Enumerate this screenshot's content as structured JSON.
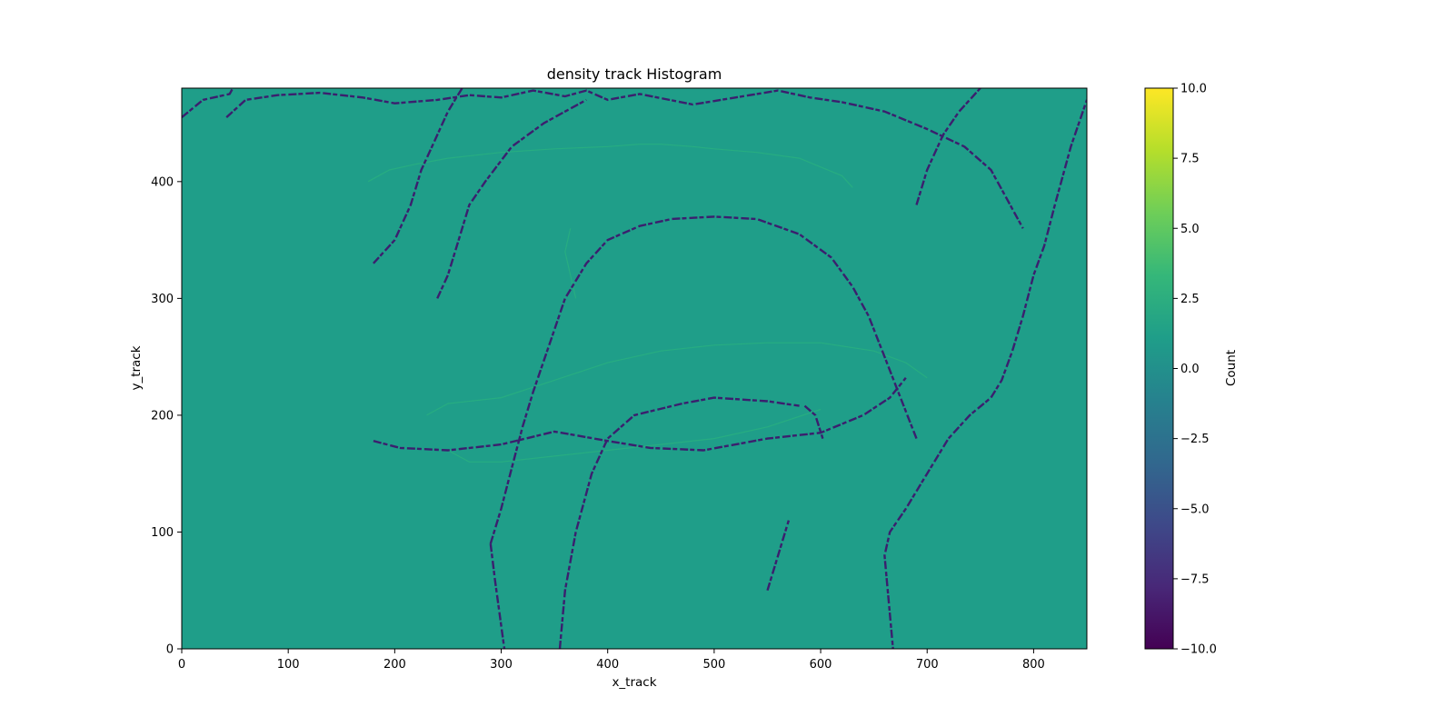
{
  "chart_data": {
    "type": "heatmap",
    "title": "density track Histogram",
    "xlabel": "x_track",
    "ylabel": "y_track",
    "xlim": [
      0,
      850
    ],
    "ylim": [
      0,
      480
    ],
    "x_ticks": [
      0,
      100,
      200,
      300,
      400,
      500,
      600,
      700,
      800
    ],
    "y_ticks": [
      0,
      100,
      200,
      300,
      400
    ],
    "grid": false,
    "background_value": 1,
    "background_color": "#1f9e89",
    "track_color": "#3b1f6e",
    "faint_track_color": "#27ad81",
    "colorbar": {
      "label": "Count",
      "range": [
        -10.0,
        10.0
      ],
      "ticks": [
        "10.0",
        "7.5",
        "5.0",
        "2.5",
        "0.0",
        "−2.5",
        "−5.0",
        "−7.5",
        "−10.0"
      ],
      "tick_values": [
        10,
        7.5,
        5,
        2.5,
        0,
        -2.5,
        -5,
        -7.5,
        -10
      ],
      "colormap": "viridis",
      "colormap_stops": [
        "#440154",
        "#482878",
        "#3e4989",
        "#31688e",
        "#26828e",
        "#1f9e89",
        "#35b779",
        "#6ece58",
        "#b5de2b",
        "#fde725"
      ]
    },
    "tracks": [
      {
        "value": -10,
        "points": [
          [
            42,
            455
          ],
          [
            60,
            470
          ],
          [
            90,
            474
          ],
          [
            130,
            476
          ],
          [
            170,
            472
          ],
          [
            200,
            467
          ],
          [
            240,
            470
          ],
          [
            270,
            474
          ],
          [
            300,
            472
          ],
          [
            330,
            478
          ],
          [
            360,
            473
          ],
          [
            380,
            478
          ],
          [
            400,
            470
          ],
          [
            430,
            475
          ],
          [
            480,
            466
          ],
          [
            520,
            472
          ],
          [
            560,
            478
          ],
          [
            590,
            472
          ],
          [
            620,
            468
          ],
          [
            660,
            460
          ],
          [
            700,
            445
          ],
          [
            735,
            430
          ],
          [
            760,
            410
          ],
          [
            775,
            385
          ],
          [
            790,
            360
          ]
        ]
      },
      {
        "value": -10,
        "points": [
          [
            180,
            178
          ],
          [
            205,
            172
          ],
          [
            250,
            170
          ],
          [
            300,
            175
          ],
          [
            350,
            186
          ],
          [
            400,
            178
          ],
          [
            440,
            172
          ],
          [
            490,
            170
          ],
          [
            550,
            180
          ],
          [
            600,
            185
          ],
          [
            640,
            200
          ],
          [
            665,
            215
          ],
          [
            680,
            232
          ]
        ]
      },
      {
        "value": -10,
        "points": [
          [
            290,
            90
          ],
          [
            300,
            120
          ],
          [
            310,
            155
          ],
          [
            320,
            190
          ],
          [
            330,
            220
          ],
          [
            345,
            260
          ],
          [
            360,
            300
          ],
          [
            380,
            330
          ],
          [
            400,
            350
          ],
          [
            430,
            362
          ],
          [
            460,
            368
          ],
          [
            500,
            370
          ],
          [
            540,
            368
          ],
          [
            580,
            355
          ],
          [
            610,
            335
          ],
          [
            630,
            310
          ],
          [
            645,
            285
          ],
          [
            660,
            250
          ],
          [
            675,
            215
          ],
          [
            690,
            180
          ]
        ]
      },
      {
        "value": -10,
        "points": [
          [
            290,
            90
          ],
          [
            292,
            75
          ],
          [
            294,
            60
          ],
          [
            297,
            40
          ],
          [
            300,
            20
          ],
          [
            303,
            0
          ]
        ]
      },
      {
        "value": -10,
        "points": [
          [
            355,
            0
          ],
          [
            360,
            50
          ],
          [
            370,
            100
          ],
          [
            385,
            150
          ],
          [
            400,
            180
          ],
          [
            425,
            200
          ],
          [
            470,
            210
          ],
          [
            500,
            215
          ],
          [
            550,
            212
          ],
          [
            580,
            208
          ]
        ]
      },
      {
        "value": -10,
        "points": [
          [
            585,
            208
          ],
          [
            595,
            200
          ],
          [
            602,
            180
          ]
        ]
      },
      {
        "value": -10,
        "points": [
          [
            550,
            50
          ],
          [
            560,
            80
          ],
          [
            570,
            110
          ]
        ]
      },
      {
        "value": -10,
        "points": [
          [
            670,
            -20
          ],
          [
            668,
            0
          ],
          [
            665,
            30
          ],
          [
            662,
            60
          ],
          [
            660,
            80
          ],
          [
            665,
            100
          ],
          [
            680,
            120
          ],
          [
            700,
            150
          ],
          [
            720,
            180
          ],
          [
            740,
            200
          ],
          [
            760,
            215
          ],
          [
            770,
            230
          ],
          [
            780,
            255
          ],
          [
            790,
            285
          ],
          [
            800,
            320
          ],
          [
            810,
            345
          ],
          [
            820,
            380
          ],
          [
            835,
            430
          ],
          [
            850,
            470
          ]
        ]
      },
      {
        "value": -10,
        "points": [
          [
            0,
            455
          ],
          [
            20,
            470
          ],
          [
            45,
            475
          ],
          [
            60,
            500
          ]
        ]
      },
      {
        "value": -10,
        "points": [
          [
            240,
            300
          ],
          [
            250,
            320
          ],
          [
            260,
            350
          ],
          [
            270,
            380
          ],
          [
            285,
            400
          ],
          [
            310,
            430
          ],
          [
            340,
            450
          ],
          [
            360,
            460
          ],
          [
            380,
            470
          ]
        ]
      },
      {
        "value": -10,
        "points": [
          [
            180,
            330
          ],
          [
            200,
            350
          ],
          [
            215,
            380
          ],
          [
            225,
            410
          ],
          [
            235,
            430
          ],
          [
            250,
            460
          ],
          [
            270,
            490
          ]
        ]
      },
      {
        "value": -10,
        "points": [
          [
            690,
            380
          ],
          [
            700,
            410
          ],
          [
            715,
            440
          ],
          [
            730,
            460
          ],
          [
            750,
            480
          ]
        ]
      }
    ],
    "faint_tracks": [
      {
        "value": 3,
        "points": [
          [
            175,
            400
          ],
          [
            195,
            410
          ],
          [
            220,
            415
          ],
          [
            250,
            420
          ],
          [
            300,
            425
          ],
          [
            350,
            428
          ],
          [
            400,
            430
          ],
          [
            430,
            432
          ],
          [
            450,
            432
          ],
          [
            480,
            430
          ],
          [
            500,
            428
          ],
          [
            540,
            425
          ],
          [
            580,
            420
          ],
          [
            620,
            405
          ],
          [
            630,
            395
          ]
        ]
      },
      {
        "value": 3,
        "points": [
          [
            230,
            200
          ],
          [
            250,
            210
          ],
          [
            300,
            215
          ],
          [
            350,
            230
          ],
          [
            400,
            245
          ],
          [
            450,
            255
          ],
          [
            500,
            260
          ],
          [
            550,
            262
          ],
          [
            600,
            262
          ],
          [
            650,
            255
          ],
          [
            680,
            245
          ],
          [
            700,
            232
          ]
        ]
      },
      {
        "value": 3,
        "points": [
          [
            250,
            170
          ],
          [
            270,
            160
          ],
          [
            300,
            160
          ],
          [
            350,
            165
          ],
          [
            400,
            170
          ],
          [
            450,
            175
          ],
          [
            500,
            180
          ],
          [
            550,
            190
          ],
          [
            600,
            205
          ]
        ]
      },
      {
        "value": 3,
        "points": [
          [
            370,
            300
          ],
          [
            365,
            320
          ],
          [
            360,
            340
          ],
          [
            365,
            360
          ]
        ]
      }
    ]
  }
}
